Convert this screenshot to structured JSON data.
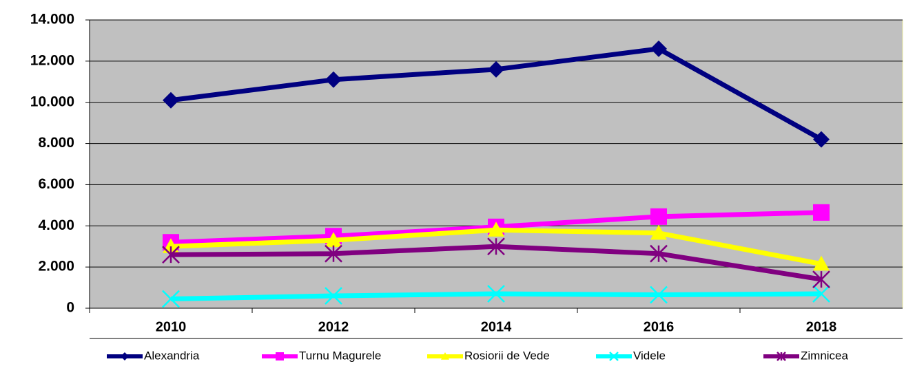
{
  "chart_data": {
    "type": "line",
    "categories": [
      "2010",
      "2012",
      "2014",
      "2016",
      "2018"
    ],
    "series": [
      {
        "name": "Alexandria",
        "color": "#000080",
        "marker": "diamond",
        "values": [
          10100,
          11100,
          11600,
          12600,
          8200
        ]
      },
      {
        "name": "Turnu Magurele",
        "color": "#ff00ff",
        "marker": "square",
        "values": [
          3200,
          3500,
          3950,
          4450,
          4650
        ]
      },
      {
        "name": "Rosiorii de Vede",
        "color": "#ffff00",
        "marker": "triangle",
        "values": [
          3000,
          3300,
          3800,
          3650,
          2150
        ]
      },
      {
        "name": "Videle",
        "color": "#00ffff",
        "marker": "x",
        "values": [
          450,
          600,
          700,
          650,
          700
        ]
      },
      {
        "name": "Zimnicea",
        "color": "#800080",
        "marker": "star",
        "values": [
          2600,
          2650,
          3000,
          2650,
          1400
        ]
      }
    ],
    "ylim": [
      0,
      14000
    ],
    "yticks": [
      0,
      {
        "value": 2000,
        "label": "2.000"
      },
      {
        "value": 4000,
        "label": "4.000"
      },
      {
        "value": 6000,
        "label": "6.000"
      },
      {
        "value": 8000,
        "label": "8.000"
      },
      {
        "value": 10000,
        "label": "10.000"
      },
      {
        "value": 12000,
        "label": "12.000"
      },
      {
        "value": 14000,
        "label": "14.000"
      }
    ],
    "grid": true,
    "legend": "bottom",
    "plot_background": "#c0c0c0"
  }
}
